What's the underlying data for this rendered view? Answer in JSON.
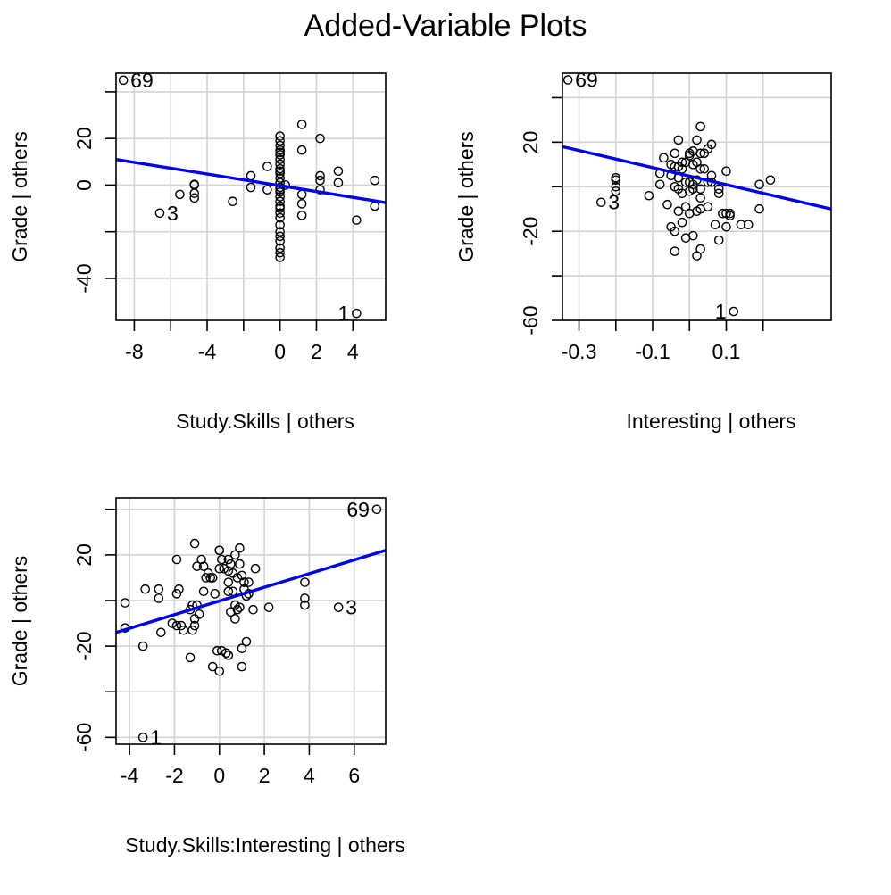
{
  "title": "Added-Variable Plots",
  "colors": {
    "fit_line": "#0000ee",
    "grid": "#d3d3d3",
    "points": "#000000"
  },
  "chart_data": [
    {
      "type": "scatter",
      "xlabel": "Study.Skills | others",
      "ylabel": "Grade  | others",
      "xlim": [
        -9,
        5.8
      ],
      "ylim": [
        -58,
        48
      ],
      "xticks": [
        -8,
        -6,
        -4,
        -2,
        0,
        2,
        4
      ],
      "xtick_labels": [
        "-8",
        "",
        "-4",
        "",
        "0",
        "2",
        "4"
      ],
      "yticks": [
        -40,
        -20,
        0,
        20,
        40
      ],
      "ytick_labels": [
        "-40",
        "",
        "0",
        "20",
        ""
      ],
      "fit": {
        "x": [
          -9,
          5.8
        ],
        "y": [
          11,
          -7.5
        ]
      },
      "labeled": [
        {
          "x": -8.6,
          "y": 45,
          "label": "69"
        },
        {
          "x": -6.6,
          "y": -12,
          "label": "3"
        },
        {
          "x": 4.2,
          "y": -55,
          "label": "1"
        }
      ],
      "points": [
        [
          -5.5,
          -4
        ],
        [
          -4.7,
          -5.5
        ],
        [
          -4.7,
          -3.5
        ],
        [
          -4.7,
          0
        ],
        [
          -4.7,
          0.3
        ],
        [
          -2.6,
          -7
        ],
        [
          -1.6,
          -1
        ],
        [
          -1.6,
          4
        ],
        [
          -0.7,
          -2
        ],
        [
          -0.7,
          8
        ],
        [
          0,
          21
        ],
        [
          0,
          19
        ],
        [
          0,
          17
        ],
        [
          0,
          15
        ],
        [
          0,
          13
        ],
        [
          0,
          11
        ],
        [
          0,
          9
        ],
        [
          0,
          7
        ],
        [
          0,
          5
        ],
        [
          0,
          3
        ],
        [
          0,
          1
        ],
        [
          0,
          -1
        ],
        [
          0,
          -3
        ],
        [
          0,
          -5
        ],
        [
          0,
          -7
        ],
        [
          0,
          -9
        ],
        [
          0,
          -12
        ],
        [
          0,
          -14
        ],
        [
          0,
          -17
        ],
        [
          0,
          -20
        ],
        [
          0,
          -22
        ],
        [
          0,
          -24
        ],
        [
          0,
          -27
        ],
        [
          0,
          -29
        ],
        [
          0,
          -31
        ],
        [
          0,
          14
        ],
        [
          0,
          6
        ],
        [
          0,
          -2
        ],
        [
          0,
          -10
        ],
        [
          0.3,
          0
        ],
        [
          1.2,
          26
        ],
        [
          1.2,
          15
        ],
        [
          1.2,
          -4
        ],
        [
          1.2,
          -8
        ],
        [
          1.2,
          -13
        ],
        [
          2.2,
          20
        ],
        [
          2.2,
          4
        ],
        [
          2.2,
          2
        ],
        [
          2.2,
          -2
        ],
        [
          3.2,
          6
        ],
        [
          3.2,
          1
        ],
        [
          4.2,
          -15
        ],
        [
          5.2,
          2
        ],
        [
          5.2,
          -9
        ]
      ]
    },
    {
      "type": "scatter",
      "xlabel": "Interesting | others",
      "ylabel": "Grade  | others",
      "xlim": [
        -0.345,
        0.385
      ],
      "ylim": [
        -60,
        51
      ],
      "xticks": [
        -0.3,
        -0.2,
        -0.1,
        0,
        0.1,
        0.2
      ],
      "xtick_labels": [
        "-0.3",
        "",
        "-0.1",
        "",
        "0.1",
        ""
      ],
      "yticks": [
        -60,
        -40,
        -20,
        0,
        20,
        40
      ],
      "ytick_labels": [
        "-60",
        "",
        "-20",
        "",
        "20",
        ""
      ],
      "fit": {
        "x": [
          -0.345,
          0.385
        ],
        "y": [
          18,
          -10
        ]
      },
      "labeled": [
        {
          "x": -0.33,
          "y": 48,
          "label": "69"
        },
        {
          "x": -0.24,
          "y": -7,
          "label": "3"
        },
        {
          "x": 0.12,
          "y": -56,
          "label": "1"
        }
      ],
      "points": [
        [
          -0.2,
          -2
        ],
        [
          -0.2,
          0
        ],
        [
          -0.2,
          3
        ],
        [
          -0.2,
          4
        ],
        [
          -0.11,
          -4
        ],
        [
          -0.08,
          1
        ],
        [
          -0.08,
          6
        ],
        [
          -0.07,
          13
        ],
        [
          -0.06,
          -8
        ],
        [
          -0.05,
          -18
        ],
        [
          -0.05,
          5
        ],
        [
          -0.05,
          10
        ],
        [
          -0.04,
          0
        ],
        [
          -0.04,
          -20
        ],
        [
          -0.04,
          -29
        ],
        [
          -0.04,
          15
        ],
        [
          -0.04,
          9
        ],
        [
          -0.03,
          -1
        ],
        [
          -0.03,
          -11
        ],
        [
          -0.03,
          21
        ],
        [
          -0.03,
          9
        ],
        [
          -0.03,
          4
        ],
        [
          -0.02,
          -16
        ],
        [
          -0.02,
          -3
        ],
        [
          -0.02,
          8
        ],
        [
          -0.02,
          11
        ],
        [
          -0.01,
          2
        ],
        [
          -0.01,
          -9
        ],
        [
          -0.01,
          -23
        ],
        [
          -0.01,
          11
        ],
        [
          0,
          14
        ],
        [
          0,
          2
        ],
        [
          0,
          -2
        ],
        [
          0,
          15
        ],
        [
          0,
          -12
        ],
        [
          0.01,
          10
        ],
        [
          0.01,
          -22
        ],
        [
          0.01,
          1
        ],
        [
          0.01,
          16
        ],
        [
          0.01,
          -1
        ],
        [
          0.02,
          21
        ],
        [
          0.02,
          -31
        ],
        [
          0.02,
          11
        ],
        [
          0.02,
          -11
        ],
        [
          0.02,
          3
        ],
        [
          0.03,
          27
        ],
        [
          0.03,
          15
        ],
        [
          0.03,
          8
        ],
        [
          0.03,
          -10
        ],
        [
          0.03,
          -5
        ],
        [
          0.03,
          -28
        ],
        [
          0.03,
          -1
        ],
        [
          0.04,
          8
        ],
        [
          0.04,
          15
        ],
        [
          0.05,
          2
        ],
        [
          0.05,
          -9
        ],
        [
          0.05,
          17
        ],
        [
          0.06,
          5
        ],
        [
          0.06,
          2
        ],
        [
          0.06,
          19
        ],
        [
          0.07,
          -17
        ],
        [
          0.08,
          -3
        ],
        [
          0.08,
          -24
        ],
        [
          0.08,
          -1
        ],
        [
          0.09,
          -12
        ],
        [
          0.1,
          -18
        ],
        [
          0.1,
          7
        ],
        [
          0.1,
          -12
        ],
        [
          0.11,
          -12
        ],
        [
          0.11,
          -13
        ],
        [
          0.14,
          -17
        ],
        [
          0.16,
          -17
        ],
        [
          0.19,
          -10
        ],
        [
          0.19,
          1
        ],
        [
          0.22,
          3
        ]
      ]
    },
    {
      "type": "scatter",
      "xlabel": "Study.Skills:Interesting | others",
      "ylabel": "Grade  | others",
      "xlim": [
        -4.6,
        7.4
      ],
      "ylim": [
        -63,
        45
      ],
      "xticks": [
        -4,
        -2,
        0,
        2,
        4,
        6
      ],
      "xtick_labels": [
        "-4",
        "-2",
        "0",
        "2",
        "4",
        "6"
      ],
      "yticks": [
        -60,
        -40,
        -20,
        0,
        20,
        40
      ],
      "ytick_labels": [
        "-60",
        "",
        "-20",
        "",
        "20",
        ""
      ],
      "fit": {
        "x": [
          -4.6,
          7.4
        ],
        "y": [
          -14,
          22
        ]
      },
      "labeled": [
        {
          "x": 7,
          "y": 40,
          "label": "69"
        },
        {
          "x": 5.3,
          "y": -3,
          "label": "3"
        },
        {
          "x": -3.4,
          "y": -60,
          "label": "1"
        }
      ],
      "points": [
        [
          -4.2,
          -1
        ],
        [
          -4.2,
          -12
        ],
        [
          -3.4,
          -20
        ],
        [
          -3.3,
          5
        ],
        [
          -2.7,
          5
        ],
        [
          -2.7,
          1
        ],
        [
          -2.6,
          -14
        ],
        [
          -2.1,
          -10
        ],
        [
          -1.9,
          3
        ],
        [
          -1.9,
          18
        ],
        [
          -1.9,
          -11
        ],
        [
          -1.8,
          5
        ],
        [
          -1.7,
          -11
        ],
        [
          -1.6,
          -13
        ],
        [
          -1.3,
          -4
        ],
        [
          -1.3,
          -25
        ],
        [
          -1.2,
          -2
        ],
        [
          -1.2,
          -13
        ],
        [
          -1.1,
          25
        ],
        [
          -1.1,
          -8
        ],
        [
          -1.1,
          -11
        ],
        [
          -1,
          15
        ],
        [
          -1,
          -2
        ],
        [
          -0.9,
          -6
        ],
        [
          -0.8,
          18
        ],
        [
          -0.7,
          15
        ],
        [
          -0.7,
          4
        ],
        [
          -0.6,
          10
        ],
        [
          -0.5,
          12
        ],
        [
          -0.4,
          10
        ],
        [
          -0.3,
          -29
        ],
        [
          -0.3,
          10
        ],
        [
          -0.2,
          3
        ],
        [
          -0.1,
          -22
        ],
        [
          0,
          22
        ],
        [
          0,
          14
        ],
        [
          0,
          22
        ],
        [
          0,
          -31
        ],
        [
          0.1,
          18
        ],
        [
          0.1,
          -22
        ],
        [
          0.2,
          14
        ],
        [
          0.3,
          -23
        ],
        [
          0.4,
          8
        ],
        [
          0.4,
          18
        ],
        [
          0.4,
          13
        ],
        [
          0.4,
          4
        ],
        [
          0.4,
          -24
        ],
        [
          0.5,
          16
        ],
        [
          0.5,
          -5
        ],
        [
          0.6,
          12
        ],
        [
          0.6,
          4
        ],
        [
          0.7,
          20
        ],
        [
          0.7,
          -2
        ],
        [
          0.7,
          -8
        ],
        [
          0.8,
          10
        ],
        [
          0.8,
          -4
        ],
        [
          0.9,
          16
        ],
        [
          0.9,
          23
        ],
        [
          0.9,
          -3
        ],
        [
          1,
          11
        ],
        [
          1,
          -21
        ],
        [
          1,
          -29
        ],
        [
          1.1,
          8
        ],
        [
          1.1,
          5
        ],
        [
          1.2,
          2
        ],
        [
          1.2,
          -18
        ],
        [
          1.3,
          8
        ],
        [
          1.3,
          3
        ],
        [
          1.5,
          -4
        ],
        [
          1.6,
          14
        ],
        [
          2.2,
          -3
        ],
        [
          3.8,
          8
        ],
        [
          3.8,
          1
        ],
        [
          3.8,
          -2
        ]
      ]
    }
  ]
}
